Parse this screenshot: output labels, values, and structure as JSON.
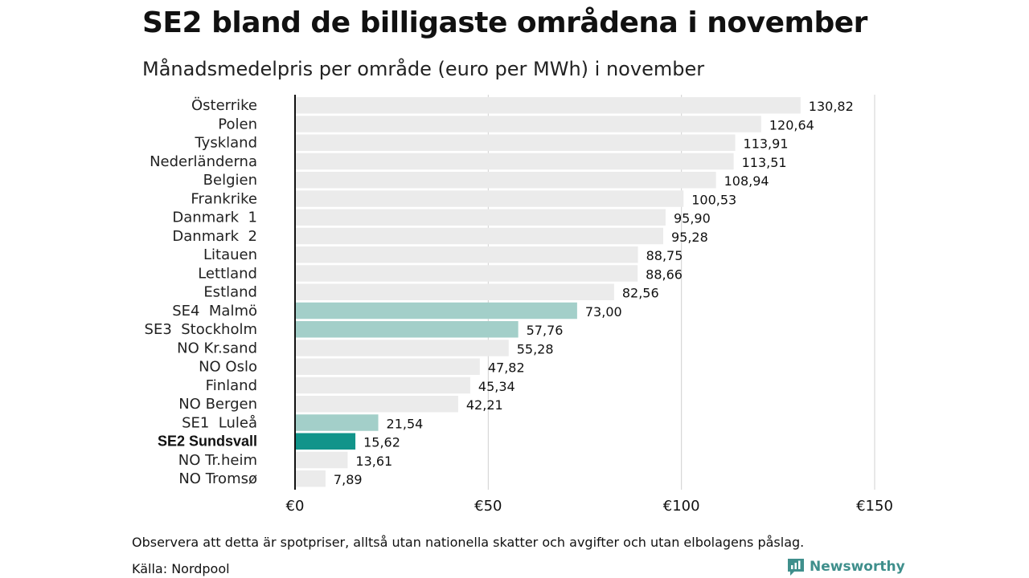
{
  "header": {
    "title": "SE2 bland de billigaste områdena i november",
    "subtitle": "Månadsmedelpris per område (euro per MWh) i november"
  },
  "footer": {
    "note": "Observera att detta är spotpriser, alltså utan nationella skatter och avgifter och utan elbolagens påslag.",
    "source": "Källa: Nordpool",
    "brand": "Newsworthy"
  },
  "colors": {
    "default_bar": "#ebebeb",
    "swedish_bar": "#a3cfc9",
    "highlight_bar": "#12948a",
    "grid": "#d0d0d0",
    "axis": "#111111",
    "brand": "#3f8f8c"
  },
  "chart_data": {
    "type": "bar",
    "orientation": "horizontal",
    "title": "SE2 bland de billigaste områdena i november",
    "subtitle": "Månadsmedelpris per område (euro per MWh) i november",
    "xlim": [
      0,
      150
    ],
    "xticks": [
      0,
      50,
      100,
      150
    ],
    "xtick_labels": [
      "€0",
      "€50",
      "€100",
      "€150"
    ],
    "grid": true,
    "categories": [
      "Österrike",
      "Polen",
      "Tyskland",
      "Nederländerna",
      "Belgien",
      "Frankrike",
      "Danmark  1",
      "Danmark  2",
      "Litauen",
      "Lettland",
      "Estland",
      "SE4  Malmö",
      "SE3  Stockholm",
      "NO Kr.sand",
      "NO Oslo",
      "Finland",
      "NO Bergen",
      "SE1  Luleå",
      "SE2 Sundsvall",
      "NO Tr.heim",
      "NO Tromsø"
    ],
    "values": [
      130.82,
      120.64,
      113.91,
      113.51,
      108.94,
      100.53,
      95.9,
      95.28,
      88.75,
      88.66,
      82.56,
      73.0,
      57.76,
      55.28,
      47.82,
      45.34,
      42.21,
      21.54,
      15.62,
      13.61,
      7.89
    ],
    "value_labels": [
      "130,82",
      "120,64",
      "113,91",
      "113,51",
      "108,94",
      "100,53",
      "95,90",
      "95,28",
      "88,75",
      "88,66",
      "82,56",
      "73,00",
      "57,76",
      "55,28",
      "47,82",
      "45,34",
      "42,21",
      "21,54",
      "15,62",
      "13,61",
      "7,89"
    ],
    "bar_group": [
      "default",
      "default",
      "default",
      "default",
      "default",
      "default",
      "default",
      "default",
      "default",
      "default",
      "default",
      "swedish",
      "swedish",
      "default",
      "default",
      "default",
      "default",
      "swedish",
      "highlight",
      "default",
      "default"
    ]
  }
}
